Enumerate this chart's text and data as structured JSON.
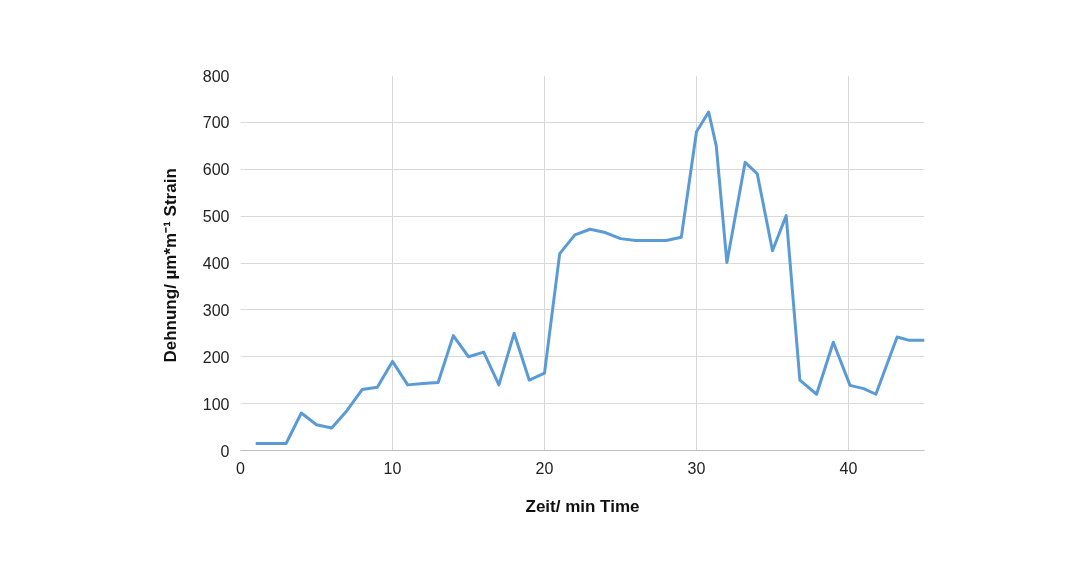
{
  "chart_data": {
    "type": "line",
    "xlabel": "Zeit/ min Time",
    "ylabel": "Dehnung/  µm*m⁻¹ Strain",
    "x": [
      1,
      2,
      3,
      4,
      5,
      6,
      7,
      8,
      9,
      10,
      11,
      12,
      13,
      14,
      15,
      16,
      17,
      18,
      19,
      20,
      21,
      22,
      23,
      24,
      25,
      26,
      27,
      28,
      29,
      30,
      30.8,
      31.3,
      32,
      33.2,
      34,
      35,
      35.9,
      36.8,
      37.9,
      39,
      40.1,
      41,
      41.8,
      43.2,
      44,
      45
    ],
    "series": [
      {
        "color": "#5b9bd5",
        "values": [
          15,
          15,
          15,
          80,
          55,
          48,
          85,
          130,
          135,
          190,
          140,
          143,
          145,
          245,
          200,
          210,
          140,
          250,
          150,
          165,
          420,
          460,
          472,
          465,
          452,
          448,
          448,
          448,
          455,
          680,
          722,
          650,
          401,
          615,
          590,
          426,
          501,
          150,
          120,
          231,
          139,
          132,
          120,
          242,
          235,
          235
        ]
      }
    ],
    "xlim": [
      0,
      45
    ],
    "xticks": [
      0,
      10,
      20,
      30,
      40
    ],
    "ylim": [
      0,
      800
    ],
    "yticks": [
      0,
      100,
      200,
      300,
      400,
      500,
      600,
      700,
      800
    ],
    "grid": true,
    "marker": "none",
    "line_style": "solid"
  }
}
